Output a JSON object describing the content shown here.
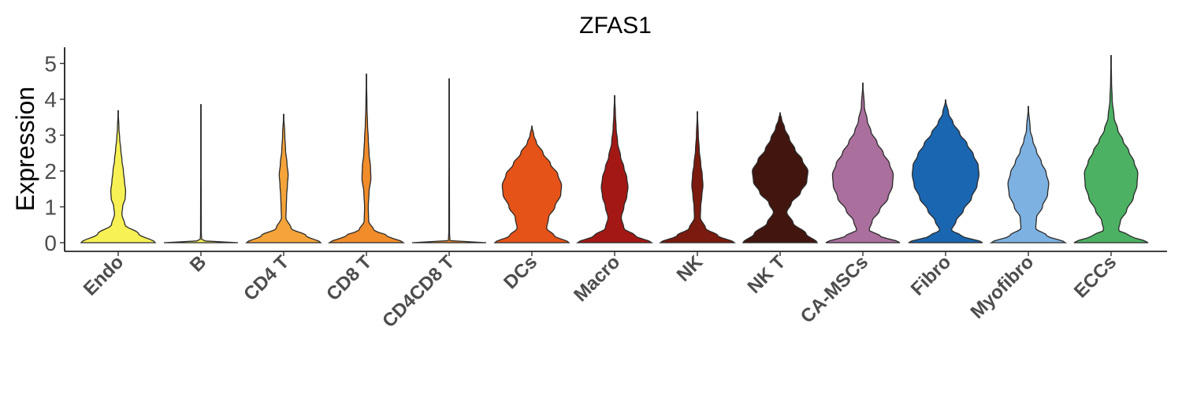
{
  "chart_data": {
    "type": "violin",
    "title": "ZFAS1",
    "ylabel": "Expression",
    "xlabel": "",
    "ylim": [
      -0.25,
      5.5
    ],
    "yticks": [
      0,
      1,
      2,
      3,
      4,
      5
    ],
    "grid": false,
    "legend": "none",
    "categories": [
      "Endo",
      "B",
      "CD4 T",
      "CD8 T",
      "CD4CD8 T",
      "DCs",
      "Macro",
      "NK",
      "NK T",
      "CA-MSCs",
      "Fibro",
      "Myofibro",
      "ECCs"
    ],
    "series": [
      {
        "category": "Endo",
        "color": "#F7F155",
        "max": 3.68,
        "profile": [
          [
            0,
            1.0
          ],
          [
            0.25,
            0.55
          ],
          [
            0.5,
            0.18
          ],
          [
            0.8,
            0.1
          ],
          [
            1.0,
            0.12
          ],
          [
            1.25,
            0.19
          ],
          [
            1.45,
            0.2
          ],
          [
            1.7,
            0.17
          ],
          [
            2.0,
            0.14
          ],
          [
            2.3,
            0.1
          ],
          [
            2.6,
            0.07
          ],
          [
            2.9,
            0.04
          ],
          [
            3.2,
            0.02
          ],
          [
            3.68,
            0.0
          ]
        ]
      },
      {
        "category": "B",
        "color": "#F7F155",
        "max": 3.85,
        "profile": [
          [
            0,
            1.0
          ],
          [
            0.03,
            0.3
          ],
          [
            0.06,
            0.02
          ],
          [
            0.3,
            0.01
          ],
          [
            3.85,
            0.0
          ]
        ]
      },
      {
        "category": "CD4 T",
        "color": "#F4A43A",
        "max": 3.58,
        "profile": [
          [
            0,
            1.0
          ],
          [
            0.2,
            0.6
          ],
          [
            0.4,
            0.2
          ],
          [
            0.7,
            0.06
          ],
          [
            1.0,
            0.07
          ],
          [
            1.3,
            0.08
          ],
          [
            1.6,
            0.1
          ],
          [
            1.9,
            0.12
          ],
          [
            2.2,
            0.09
          ],
          [
            2.6,
            0.05
          ],
          [
            3.0,
            0.03
          ],
          [
            3.58,
            0.0
          ]
        ]
      },
      {
        "category": "CD8 T",
        "color": "#F18C2A",
        "max": 4.7,
        "profile": [
          [
            0,
            1.0
          ],
          [
            0.2,
            0.55
          ],
          [
            0.35,
            0.2
          ],
          [
            0.6,
            0.06
          ],
          [
            1.0,
            0.05
          ],
          [
            1.4,
            0.07
          ],
          [
            1.8,
            0.12
          ],
          [
            2.1,
            0.11
          ],
          [
            2.5,
            0.07
          ],
          [
            2.9,
            0.05
          ],
          [
            3.3,
            0.03
          ],
          [
            3.8,
            0.015
          ],
          [
            4.7,
            0.0
          ]
        ]
      },
      {
        "category": "CD4CD8 T",
        "color": "#F18C2A",
        "max": 4.57,
        "profile": [
          [
            0,
            1.0
          ],
          [
            0.03,
            0.3
          ],
          [
            0.06,
            0.02
          ],
          [
            0.3,
            0.01
          ],
          [
            4.57,
            0.0
          ]
        ]
      },
      {
        "category": "DCs",
        "color": "#E55318",
        "max": 3.25,
        "profile": [
          [
            0,
            1.0
          ],
          [
            0.2,
            0.6
          ],
          [
            0.4,
            0.4
          ],
          [
            0.7,
            0.45
          ],
          [
            1.0,
            0.62
          ],
          [
            1.35,
            0.78
          ],
          [
            1.6,
            0.8
          ],
          [
            1.9,
            0.7
          ],
          [
            2.2,
            0.5
          ],
          [
            2.5,
            0.3
          ],
          [
            2.8,
            0.12
          ],
          [
            3.0,
            0.05
          ],
          [
            3.25,
            0.0
          ]
        ]
      },
      {
        "category": "Macro",
        "color": "#A31815",
        "max": 4.1,
        "profile": [
          [
            0,
            1.0
          ],
          [
            0.2,
            0.55
          ],
          [
            0.4,
            0.25
          ],
          [
            0.7,
            0.18
          ],
          [
            1.0,
            0.25
          ],
          [
            1.3,
            0.33
          ],
          [
            1.55,
            0.36
          ],
          [
            1.8,
            0.33
          ],
          [
            2.1,
            0.25
          ],
          [
            2.4,
            0.16
          ],
          [
            2.8,
            0.08
          ],
          [
            3.2,
            0.04
          ],
          [
            3.6,
            0.02
          ],
          [
            4.1,
            0.0
          ]
        ]
      },
      {
        "category": "NK",
        "color": "#7B1A0E",
        "max": 3.65,
        "profile": [
          [
            0,
            1.0
          ],
          [
            0.2,
            0.55
          ],
          [
            0.4,
            0.22
          ],
          [
            0.7,
            0.08
          ],
          [
            1.0,
            0.09
          ],
          [
            1.3,
            0.12
          ],
          [
            1.6,
            0.15
          ],
          [
            1.9,
            0.13
          ],
          [
            2.2,
            0.09
          ],
          [
            2.6,
            0.05
          ],
          [
            3.0,
            0.025
          ],
          [
            3.65,
            0.0
          ]
        ]
      },
      {
        "category": "NK T",
        "color": "#42160F",
        "max": 3.62,
        "profile": [
          [
            0,
            1.0
          ],
          [
            0.25,
            0.7
          ],
          [
            0.55,
            0.35
          ],
          [
            0.85,
            0.18
          ],
          [
            1.1,
            0.3
          ],
          [
            1.4,
            0.55
          ],
          [
            1.7,
            0.72
          ],
          [
            2.0,
            0.75
          ],
          [
            2.3,
            0.6
          ],
          [
            2.6,
            0.4
          ],
          [
            2.9,
            0.25
          ],
          [
            3.2,
            0.12
          ],
          [
            3.45,
            0.04
          ],
          [
            3.62,
            0.0
          ]
        ]
      },
      {
        "category": "CA-MSCs",
        "color": "#AA6F9D",
        "max": 4.45,
        "profile": [
          [
            0,
            1.0
          ],
          [
            0.2,
            0.45
          ],
          [
            0.35,
            0.17
          ],
          [
            0.6,
            0.25
          ],
          [
            0.9,
            0.45
          ],
          [
            1.25,
            0.68
          ],
          [
            1.6,
            0.8
          ],
          [
            1.9,
            0.82
          ],
          [
            2.2,
            0.72
          ],
          [
            2.5,
            0.55
          ],
          [
            2.8,
            0.38
          ],
          [
            3.1,
            0.22
          ],
          [
            3.4,
            0.12
          ],
          [
            3.8,
            0.04
          ],
          [
            4.45,
            0.0
          ]
        ]
      },
      {
        "category": "Fibro",
        "color": "#1A66B0",
        "max": 3.98,
        "profile": [
          [
            0,
            1.0
          ],
          [
            0.2,
            0.42
          ],
          [
            0.35,
            0.16
          ],
          [
            0.6,
            0.28
          ],
          [
            0.9,
            0.48
          ],
          [
            1.25,
            0.7
          ],
          [
            1.6,
            0.85
          ],
          [
            1.9,
            0.9
          ],
          [
            2.15,
            0.88
          ],
          [
            2.45,
            0.75
          ],
          [
            2.75,
            0.58
          ],
          [
            3.05,
            0.38
          ],
          [
            3.35,
            0.2
          ],
          [
            3.6,
            0.08
          ],
          [
            3.98,
            0.0
          ]
        ]
      },
      {
        "category": "Myofibro",
        "color": "#7DB1E1",
        "max": 3.8,
        "profile": [
          [
            0,
            1.0
          ],
          [
            0.2,
            0.5
          ],
          [
            0.4,
            0.2
          ],
          [
            0.7,
            0.22
          ],
          [
            1.0,
            0.38
          ],
          [
            1.35,
            0.52
          ],
          [
            1.65,
            0.55
          ],
          [
            1.95,
            0.48
          ],
          [
            2.25,
            0.35
          ],
          [
            2.55,
            0.22
          ],
          [
            2.85,
            0.12
          ],
          [
            3.15,
            0.05
          ],
          [
            3.8,
            0.0
          ]
        ]
      },
      {
        "category": "ECCs",
        "color": "#4CB162",
        "max": 5.22,
        "profile": [
          [
            0,
            1.0
          ],
          [
            0.2,
            0.5
          ],
          [
            0.35,
            0.2
          ],
          [
            0.6,
            0.25
          ],
          [
            0.9,
            0.42
          ],
          [
            1.25,
            0.6
          ],
          [
            1.6,
            0.7
          ],
          [
            1.95,
            0.72
          ],
          [
            2.25,
            0.62
          ],
          [
            2.55,
            0.48
          ],
          [
            2.85,
            0.32
          ],
          [
            3.15,
            0.18
          ],
          [
            3.5,
            0.08
          ],
          [
            4.0,
            0.03
          ],
          [
            4.5,
            0.012
          ],
          [
            5.22,
            0.0
          ]
        ]
      }
    ]
  }
}
